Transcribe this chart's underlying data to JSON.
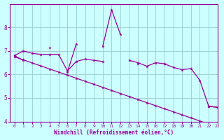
{
  "x": [
    0,
    1,
    2,
    3,
    4,
    5,
    6,
    7,
    8,
    9,
    10,
    11,
    12,
    13,
    14,
    15,
    16,
    17,
    18,
    19,
    20,
    21,
    22,
    23
  ],
  "series_volatile": [
    6.8,
    6.6,
    null,
    null,
    7.15,
    null,
    6.1,
    7.3,
    null,
    null,
    7.2,
    8.75,
    7.7,
    null,
    6.45,
    null,
    null,
    6.45,
    null,
    null,
    null,
    null,
    4.65,
    4.6
  ],
  "series_moderate": [
    6.8,
    7.0,
    6.9,
    6.85,
    6.85,
    6.85,
    6.15,
    6.55,
    6.65,
    6.6,
    6.55,
    null,
    null,
    6.6,
    6.5,
    6.35,
    6.5,
    6.45,
    6.3,
    6.2,
    6.25,
    5.75,
    4.65,
    4.6
  ],
  "series_straight": [
    6.75,
    6.62,
    6.49,
    6.36,
    6.23,
    6.1,
    5.97,
    5.84,
    5.71,
    5.58,
    5.45,
    5.32,
    5.19,
    5.06,
    4.93,
    4.8,
    4.67,
    4.54,
    4.41,
    4.28,
    4.15,
    4.02,
    3.89,
    3.76
  ],
  "color": "#990099",
  "bg_color": "#ccffff",
  "grid_color": "#99cccc",
  "xlabel": "Windchill (Refroidissement éolien,°C)",
  "ylim": [
    4,
    9
  ],
  "xlim": [
    -0.5,
    23
  ],
  "yticks": [
    4,
    5,
    6,
    7,
    8
  ],
  "xticks": [
    0,
    1,
    2,
    3,
    4,
    5,
    6,
    7,
    8,
    9,
    10,
    11,
    12,
    13,
    14,
    15,
    16,
    17,
    18,
    19,
    20,
    21,
    22,
    23
  ]
}
